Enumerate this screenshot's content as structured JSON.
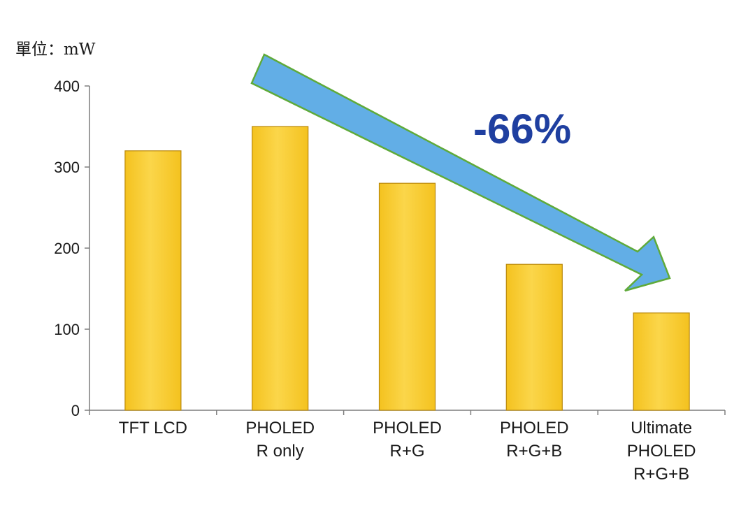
{
  "chart_data": {
    "type": "bar",
    "unit_label": "單位：mW",
    "categories": [
      [
        "TFT LCD"
      ],
      [
        "PHOLED",
        "R only"
      ],
      [
        "PHOLED",
        "R+G"
      ],
      [
        "PHOLED",
        "R+G+B"
      ],
      [
        "Ultimate",
        "PHOLED",
        "R+G+B"
      ]
    ],
    "values": [
      320,
      350,
      280,
      180,
      120
    ],
    "ylim": [
      0,
      400
    ],
    "yticks": [
      "0",
      "100",
      "200",
      "300",
      "400"
    ],
    "grid": false,
    "legend": "none",
    "annotation": {
      "text": "-66%",
      "shape": "arrow-down-right",
      "text_color": "#1f3fa0",
      "arrow_fill": "#62aee6",
      "arrow_stroke": "#5faa3a"
    },
    "colors": {
      "bar_fill": "#f4c21f",
      "bar_highlight": "#fbd64a",
      "bar_stroke": "#b9880c",
      "axis": "#7d7d7d"
    }
  }
}
